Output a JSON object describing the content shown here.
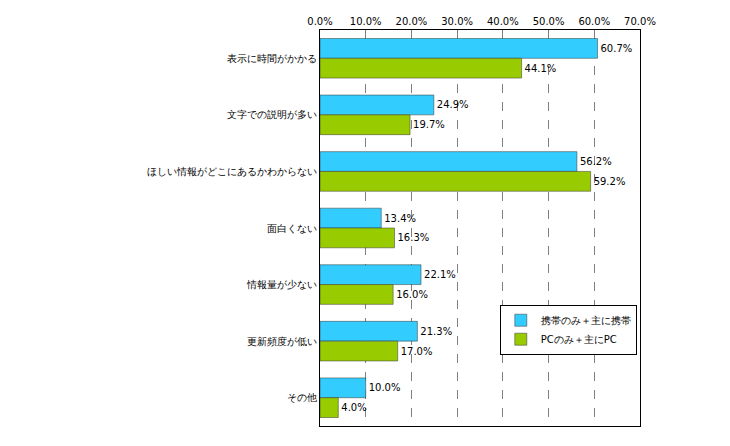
{
  "chart_data": {
    "type": "bar",
    "orientation": "horizontal",
    "categories": [
      "表示に時間がかかる",
      "文字での説明が多い",
      "ほしい情報がどこにあるかわからない",
      "面白くない",
      "情報量が少ない",
      "更新頻度が低い",
      "その他"
    ],
    "series": [
      {
        "name": "携帯のみ＋主に携帯",
        "color": "#33ccff",
        "values": [
          60.7,
          24.9,
          56.2,
          13.4,
          22.1,
          21.3,
          10.0
        ],
        "value_labels": [
          "60.7%",
          "24.9%",
          "56.2%",
          "13.4%",
          "22.1%",
          "21.3%",
          "10.0%"
        ]
      },
      {
        "name": "PCのみ＋主にPC",
        "color": "#99cc00",
        "values": [
          44.1,
          19.7,
          59.2,
          16.3,
          16.0,
          17.0,
          4.0
        ],
        "value_labels": [
          "44.1%",
          "19.7%",
          "59.2%",
          "16.3%",
          "16.0%",
          "17.0%",
          "4.0%"
        ]
      }
    ],
    "xlim": [
      0,
      70
    ],
    "xticks": [
      {
        "value": 0,
        "label": "0.0%"
      },
      {
        "value": 10,
        "label": "10.0%"
      },
      {
        "value": 20,
        "label": "20.0%"
      },
      {
        "value": 30,
        "label": "30.0%"
      },
      {
        "value": 40,
        "label": "40.0%"
      },
      {
        "value": 50,
        "label": "50.0%"
      },
      {
        "value": 60,
        "label": "60.0%"
      },
      {
        "value": 70,
        "label": "70.0%"
      }
    ],
    "grid": true,
    "data_labels": true,
    "legend": "lower right"
  }
}
